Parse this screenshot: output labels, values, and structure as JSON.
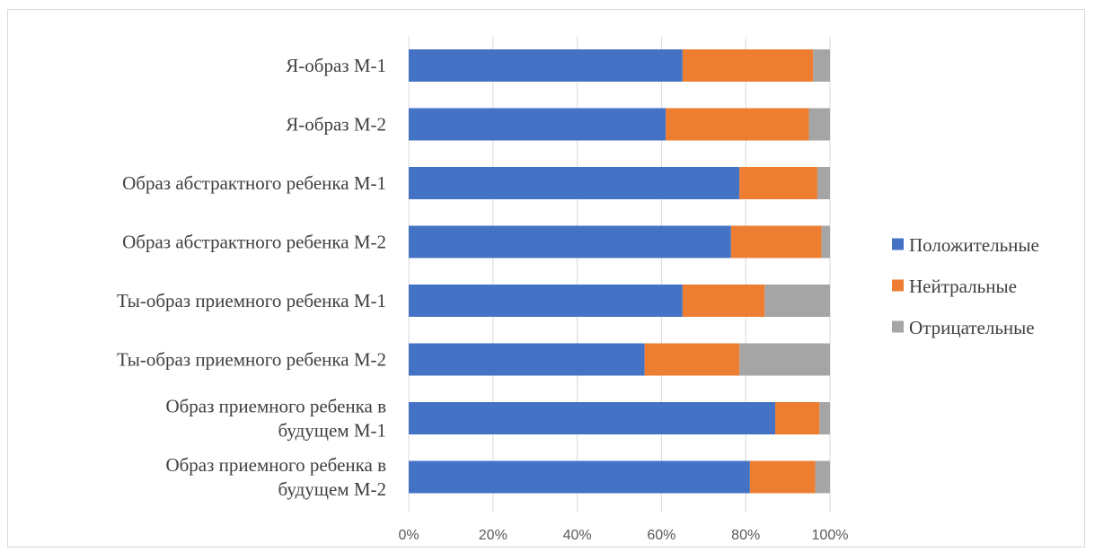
{
  "chart_data": {
    "type": "bar",
    "orientation": "horizontal",
    "stacked": "percent",
    "categories": [
      "Я-образ М-1",
      "Я-образ М-2",
      "Образ абстрактного ребенка М-1",
      "Образ абстрактного ребенка М-2",
      "Ты-образ приемного ребенка М-1",
      "Ты-образ приемного ребенка М-2",
      "Образ приемного ребенка в будущем М-1",
      "Образ приемного ребенка в будущем М-2"
    ],
    "category_lines": [
      [
        "Я-образ М-1"
      ],
      [
        "Я-образ М-2"
      ],
      [
        "Образ абстрактного ребенка М-1"
      ],
      [
        "Образ абстрактного ребенка М-2"
      ],
      [
        "Ты-образ приемного ребенка М-1"
      ],
      [
        "Ты-образ приемного ребенка М-2"
      ],
      [
        "Образ приемного ребенка в",
        "будущем М-1"
      ],
      [
        "Образ приемного ребенка в",
        "будущем М-2"
      ]
    ],
    "series": [
      {
        "name": "Положительные",
        "color": "#4472c4",
        "values": [
          65,
          61,
          78.5,
          76.5,
          65,
          56,
          87,
          81
        ]
      },
      {
        "name": "Нейтральные",
        "color": "#ed7d31",
        "values": [
          31,
          34,
          18.5,
          21.5,
          19.5,
          22.5,
          10.5,
          15.5
        ]
      },
      {
        "name": "Отрицательные",
        "color": "#a5a5a5",
        "values": [
          4,
          5,
          3,
          2,
          15.5,
          21.5,
          2.5,
          3.5
        ]
      }
    ],
    "x_ticks": [
      "0%",
      "20%",
      "40%",
      "60%",
      "80%",
      "100%"
    ],
    "xlim": [
      0,
      100
    ],
    "grid": true,
    "legend_position": "right",
    "title": "",
    "xlabel": "",
    "ylabel": ""
  }
}
